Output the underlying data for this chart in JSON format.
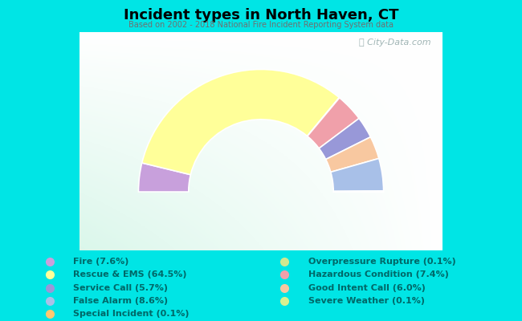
{
  "title": "Incident types in North Haven, CT",
  "subtitle": "Based on 2002 - 2018 National Fire Incident Reporting System data",
  "background_outer": "#00e5e5",
  "watermark": "ⓘ City-Data.com",
  "segments": [
    {
      "label": "Fire (7.6%)",
      "value": 7.6,
      "color": "#c8a0dc"
    },
    {
      "label": "Rescue & EMS (64.5%)",
      "value": 64.5,
      "color": "#ffff99"
    },
    {
      "label": "Overpressure Rupture (0.1%)",
      "value": 0.1,
      "color": "#d0e890"
    },
    {
      "label": "Hazardous Condition (7.4%)",
      "value": 7.4,
      "color": "#f0a0aa"
    },
    {
      "label": "Service Call (5.7%)",
      "value": 5.7,
      "color": "#9898d8"
    },
    {
      "label": "Good Intent Call (6.0%)",
      "value": 6.0,
      "color": "#f8c8a0"
    },
    {
      "label": "False Alarm (8.6%)",
      "value": 8.6,
      "color": "#a8c0e8"
    },
    {
      "label": "Special Incident (0.1%)",
      "value": 0.1,
      "color": "#ffc870"
    },
    {
      "label": "Severe Weather (0.1%)",
      "value": 0.1,
      "color": "#d8f090"
    }
  ],
  "legend_left": [
    {
      "label": "Fire (7.6%)",
      "color": "#c8a0dc"
    },
    {
      "label": "Rescue & EMS (64.5%)",
      "color": "#ffff99"
    },
    {
      "label": "Service Call (5.7%)",
      "color": "#9898d8"
    },
    {
      "label": "False Alarm (8.6%)",
      "color": "#a8c0e8"
    },
    {
      "label": "Special Incident (0.1%)",
      "color": "#ffc870"
    }
  ],
  "legend_right": [
    {
      "label": "Overpressure Rupture (0.1%)",
      "color": "#d0e890"
    },
    {
      "label": "Hazardous Condition (7.4%)",
      "color": "#f0a0aa"
    },
    {
      "label": "Good Intent Call (6.0%)",
      "color": "#f8c8a0"
    },
    {
      "label": "Severe Weather (0.1%)",
      "color": "#d8f090"
    }
  ],
  "legend_text_color": "#006868",
  "title_color": "#000000",
  "subtitle_color": "#707070",
  "outer_r": 1.15,
  "inner_r": 0.68
}
